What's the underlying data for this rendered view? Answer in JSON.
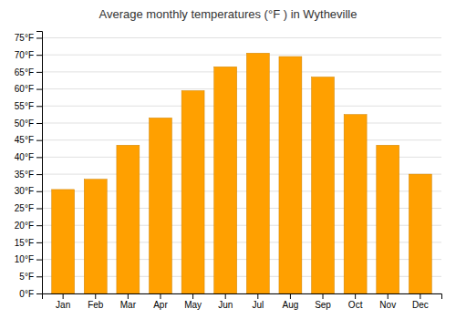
{
  "chart_data": {
    "type": "bar",
    "title": "Average monthly temperatures (°F ) in Wytheville",
    "categories": [
      "Jan",
      "Feb",
      "Mar",
      "Apr",
      "May",
      "Jun",
      "Jul",
      "Aug",
      "Sep",
      "Oct",
      "Nov",
      "Dec"
    ],
    "values": [
      30.5,
      33.5,
      43.5,
      51.5,
      59.5,
      66.5,
      70.5,
      69.5,
      63.5,
      52.5,
      43.5,
      35.0
    ],
    "color": "#FFA000",
    "ylim": [
      0,
      77
    ],
    "yticks": [
      {
        "value": 0,
        "label": "0°F"
      },
      {
        "value": 5,
        "label": "5°F"
      },
      {
        "value": 10,
        "label": "10°F"
      },
      {
        "value": 15,
        "label": "15°F"
      },
      {
        "value": 20,
        "label": "20°F"
      },
      {
        "value": 25,
        "label": "25°F"
      },
      {
        "value": 30,
        "label": "30°F"
      },
      {
        "value": 35,
        "label": "35°F"
      },
      {
        "value": 40,
        "label": "40°F"
      },
      {
        "value": 45,
        "label": "45°F"
      },
      {
        "value": 50,
        "label": "50°F"
      },
      {
        "value": 55,
        "label": "55°F"
      },
      {
        "value": 60,
        "label": "60°F"
      },
      {
        "value": 65,
        "label": "65°F"
      },
      {
        "value": 70,
        "label": "70°F"
      },
      {
        "value": 75,
        "label": "75°F"
      }
    ],
    "grid": true
  }
}
